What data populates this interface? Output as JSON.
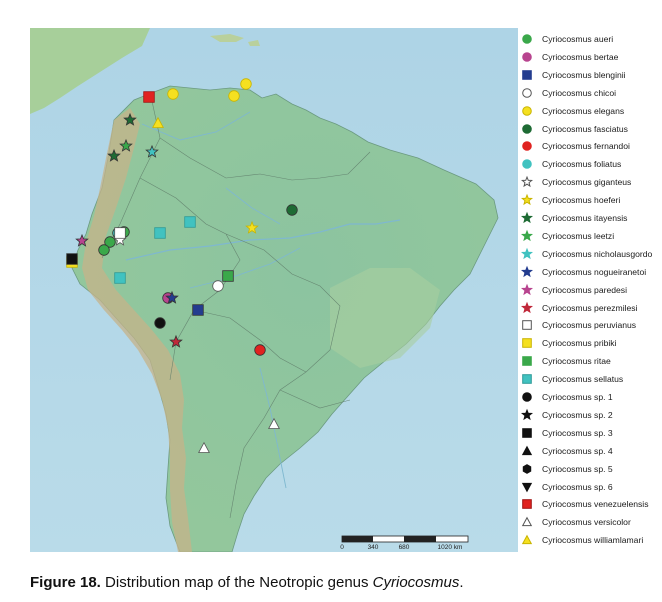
{
  "map": {
    "scale_bar": {
      "ticks": [
        "0",
        "340",
        "680",
        "1020 km"
      ]
    }
  },
  "legend": [
    {
      "label": "Cyriocosmus aueri",
      "shape": "circle",
      "fill": "#3aa84a",
      "stroke": "#3aa84a"
    },
    {
      "label": "Cyriocosmus bertae",
      "shape": "circle",
      "fill": "#b8448f",
      "stroke": "#b8448f"
    },
    {
      "label": "Cyriocosmus blenginii",
      "shape": "square",
      "fill": "#233c8f",
      "stroke": "#233c8f"
    },
    {
      "label": "Cyriocosmus chicoi",
      "shape": "circle",
      "fill": "#ffffff",
      "stroke": "#555555"
    },
    {
      "label": "Cyriocosmus elegans",
      "shape": "circle",
      "fill": "#f5e020",
      "stroke": "#c9b400"
    },
    {
      "label": "Cyriocosmus fasciatus",
      "shape": "circle",
      "fill": "#1e6b34",
      "stroke": "#1e6b34"
    },
    {
      "label": "Cyriocosmus fernandoi",
      "shape": "circle",
      "fill": "#e02320",
      "stroke": "#e02320"
    },
    {
      "label": "Cyriocosmus foliatus",
      "shape": "circle",
      "fill": "#41c2c0",
      "stroke": "#41c2c0"
    },
    {
      "label": "Cyriocosmus giganteus",
      "shape": "star",
      "fill": "#ffffff",
      "stroke": "#555555"
    },
    {
      "label": "Cyriocosmus hoeferi",
      "shape": "star",
      "fill": "#f5e020",
      "stroke": "#c9b400"
    },
    {
      "label": "Cyriocosmus itayensis",
      "shape": "star",
      "fill": "#1e6b34",
      "stroke": "#1e6b34"
    },
    {
      "label": "Cyriocosmus leetzi",
      "shape": "star",
      "fill": "#3aa84a",
      "stroke": "#3aa84a"
    },
    {
      "label": "Cyriocosmus nicholausgordo",
      "shape": "star",
      "fill": "#41c2c0",
      "stroke": "#41c2c0"
    },
    {
      "label": "Cyriocosmus nogueiranetoi",
      "shape": "star",
      "fill": "#233c8f",
      "stroke": "#233c8f"
    },
    {
      "label": "Cyriocosmus paredesi",
      "shape": "star",
      "fill": "#b8448f",
      "stroke": "#b8448f"
    },
    {
      "label": "Cyriocosmus perezmilesi",
      "shape": "star",
      "fill": "#c0283a",
      "stroke": "#c0283a"
    },
    {
      "label": "Cyriocosmus peruvianus",
      "shape": "square",
      "fill": "#ffffff",
      "stroke": "#555555"
    },
    {
      "label": "Cyriocosmus pribiki",
      "shape": "square",
      "fill": "#f5e020",
      "stroke": "#c9b400"
    },
    {
      "label": "Cyriocosmus ritae",
      "shape": "square",
      "fill": "#3aa84a",
      "stroke": "#3aa84a"
    },
    {
      "label": "Cyriocosmus sellatus",
      "shape": "square",
      "fill": "#41c2c0",
      "stroke": "#2c9a98"
    },
    {
      "label": "Cyriocosmus sp. 1",
      "shape": "circle",
      "fill": "#111111",
      "stroke": "#111111"
    },
    {
      "label": "Cyriocosmus sp. 2",
      "shape": "star",
      "fill": "#111111",
      "stroke": "#111111"
    },
    {
      "label": "Cyriocosmus sp. 3",
      "shape": "square",
      "fill": "#111111",
      "stroke": "#111111"
    },
    {
      "label": "Cyriocosmus sp. 4",
      "shape": "triangle",
      "fill": "#111111",
      "stroke": "#111111"
    },
    {
      "label": "Cyriocosmus sp. 5",
      "shape": "hexagon",
      "fill": "#111111",
      "stroke": "#111111"
    },
    {
      "label": "Cyriocosmus sp. 6",
      "shape": "triangle-down",
      "fill": "#111111",
      "stroke": "#111111"
    },
    {
      "label": "Cyriocosmus venezuelensis",
      "shape": "square",
      "fill": "#e02320",
      "stroke": "#a01010"
    },
    {
      "label": "Cyriocosmus versicolor",
      "shape": "triangle",
      "fill": "#ffffff",
      "stroke": "#555555"
    },
    {
      "label": "Cyriocosmus williamlamari",
      "shape": "triangle",
      "fill": "#f5e020",
      "stroke": "#c9b400"
    }
  ],
  "caption": {
    "label": "Figure 18.",
    "text": " Distribution map of the Neotropic genus ",
    "genus": "Cyriocosmus",
    "end": "."
  }
}
